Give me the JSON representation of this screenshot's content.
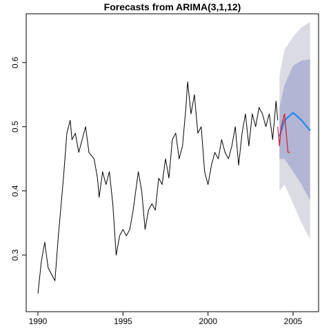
{
  "chart_data": {
    "type": "line",
    "title": "Forecasts from ARIMA(3,1,12)",
    "xlim": [
      1989.31,
      2006.5
    ],
    "ylim": [
      0.2118,
      0.676
    ],
    "xticks": [
      1990,
      1995,
      2000,
      2005
    ],
    "yticks": [
      0.3,
      0.4,
      0.5,
      0.6
    ],
    "bands": [
      {
        "color": "#dbdbe3",
        "x": [
          2004.2,
          2004.5,
          2005,
          2005.5,
          2006
        ],
        "lower": [
          0.4,
          0.41,
          0.38,
          0.35,
          0.325
        ],
        "upper": [
          0.58,
          0.62,
          0.64,
          0.655,
          0.663
        ]
      },
      {
        "color": "#b2b5d3",
        "x": [
          2004.2,
          2004.5,
          2005,
          2005.5,
          2006
        ],
        "lower": [
          0.45,
          0.45,
          0.43,
          0.41,
          0.385
        ],
        "upper": [
          0.53,
          0.565,
          0.595,
          0.603,
          0.605
        ]
      }
    ],
    "series": [
      {
        "color": "#000000",
        "width": 1,
        "x": [
          1990.0,
          1990.2,
          1990.4,
          1990.6,
          1990.8,
          1991.0,
          1991.2,
          1991.5,
          1991.7,
          1991.9,
          1992.0,
          1992.2,
          1992.4,
          1992.6,
          1992.8,
          1993.0,
          1993.3,
          1993.5,
          1993.6,
          1993.8,
          1994.0,
          1994.2,
          1994.4,
          1994.6,
          1994.8,
          1995.0,
          1995.2,
          1995.4,
          1995.6,
          1995.9,
          1996.1,
          1996.3,
          1996.5,
          1996.7,
          1996.9,
          1997.1,
          1997.3,
          1997.5,
          1997.7,
          1997.9,
          1998.1,
          1998.3,
          1998.5,
          1998.7,
          1998.8,
          1999.0,
          1999.2,
          1999.4,
          1999.6,
          1999.8,
          2000.0,
          2000.2,
          2000.4,
          2000.6,
          2000.8,
          2001.0,
          2001.2,
          2001.4,
          2001.6,
          2001.8,
          2002.0,
          2002.2,
          2002.4,
          2002.6,
          2002.8,
          2003.0,
          2003.2,
          2003.4,
          2003.6,
          2003.8,
          2004.0,
          2004.1
        ],
        "values": [
          0.24,
          0.29,
          0.32,
          0.28,
          0.27,
          0.26,
          0.33,
          0.42,
          0.49,
          0.51,
          0.48,
          0.49,
          0.46,
          0.48,
          0.5,
          0.46,
          0.45,
          0.42,
          0.39,
          0.43,
          0.41,
          0.43,
          0.38,
          0.3,
          0.33,
          0.34,
          0.33,
          0.34,
          0.37,
          0.43,
          0.4,
          0.34,
          0.37,
          0.38,
          0.37,
          0.42,
          0.41,
          0.45,
          0.42,
          0.48,
          0.49,
          0.45,
          0.47,
          0.53,
          0.57,
          0.52,
          0.55,
          0.49,
          0.5,
          0.43,
          0.41,
          0.44,
          0.46,
          0.45,
          0.48,
          0.46,
          0.45,
          0.47,
          0.5,
          0.44,
          0.49,
          0.52,
          0.47,
          0.52,
          0.5,
          0.53,
          0.52,
          0.5,
          0.52,
          0.48,
          0.54,
          0.51
        ]
      },
      {
        "color": "#2b8fe6",
        "width": 2.5,
        "x": [
          2004.2,
          2004.5,
          2005,
          2005.5,
          2006
        ],
        "values": [
          0.485,
          0.51,
          0.522,
          0.51,
          0.494
        ]
      },
      {
        "color": "#e0152b",
        "width": 1.2,
        "x": [
          2004.1,
          2004.2,
          2004.3,
          2004.5,
          2004.6,
          2004.7,
          2004.8
        ],
        "values": [
          0.5,
          0.47,
          0.5,
          0.52,
          0.49,
          0.46,
          0.46
        ]
      }
    ]
  }
}
